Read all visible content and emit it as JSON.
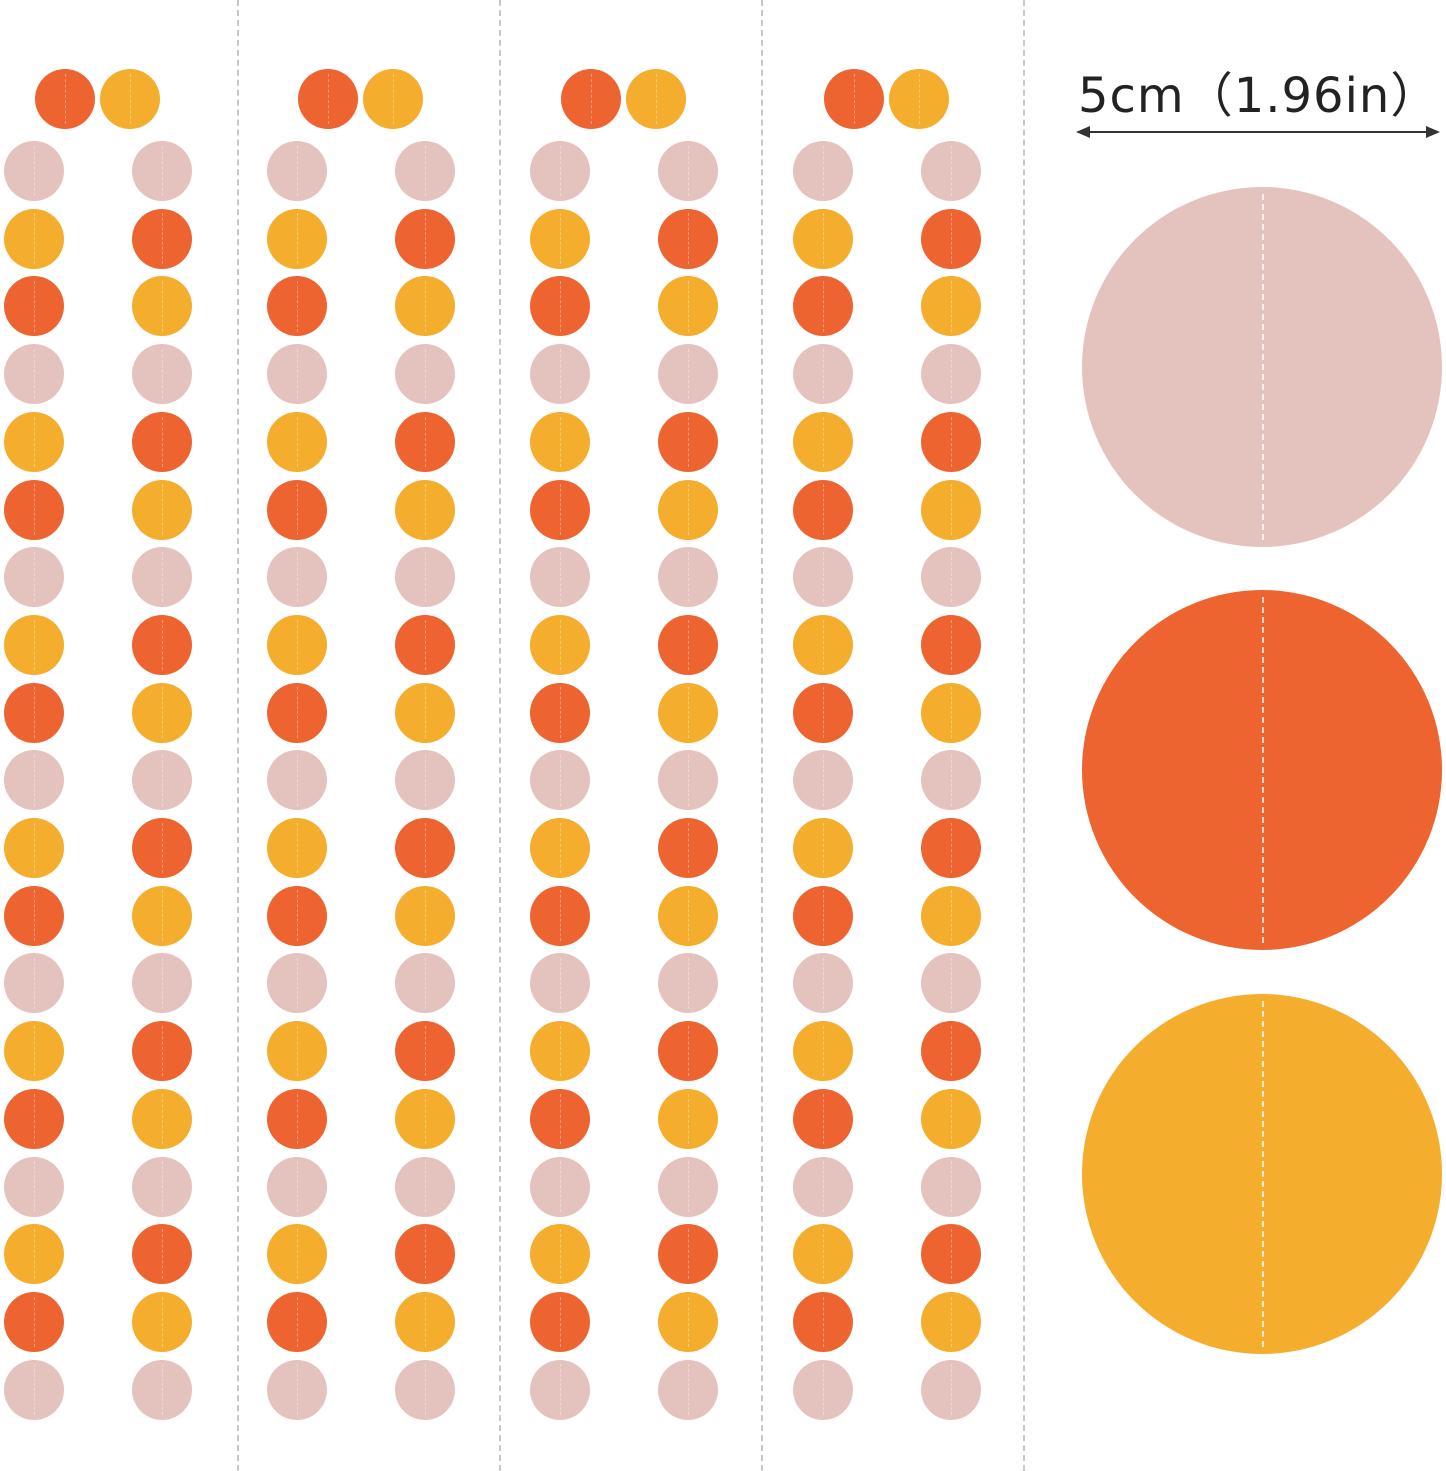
{
  "colors": {
    "orange": "#ED6431",
    "yellow": "#F5AD2E",
    "pink": "#E4C3BF",
    "divider": "#c8c8c8",
    "text": "#222222"
  },
  "garland": {
    "strand_count": 4,
    "top_pair": [
      "orange",
      "yellow"
    ],
    "left_column": [
      "pink",
      "yellow",
      "orange",
      "pink",
      "yellow",
      "orange",
      "pink",
      "yellow",
      "orange",
      "pink",
      "yellow",
      "orange",
      "pink",
      "yellow",
      "orange",
      "pink",
      "yellow",
      "orange",
      "pink"
    ],
    "right_column": [
      "pink",
      "orange",
      "yellow",
      "pink",
      "orange",
      "yellow",
      "pink",
      "orange",
      "yellow",
      "pink",
      "orange",
      "yellow",
      "pink",
      "orange",
      "yellow",
      "pink",
      "orange",
      "yellow",
      "pink"
    ]
  },
  "size_panel": {
    "dimension_label": "5cm（1.96in）",
    "circles": [
      "pink",
      "orange",
      "yellow"
    ],
    "arrow_icon": "double-headed-arrow-icon"
  }
}
